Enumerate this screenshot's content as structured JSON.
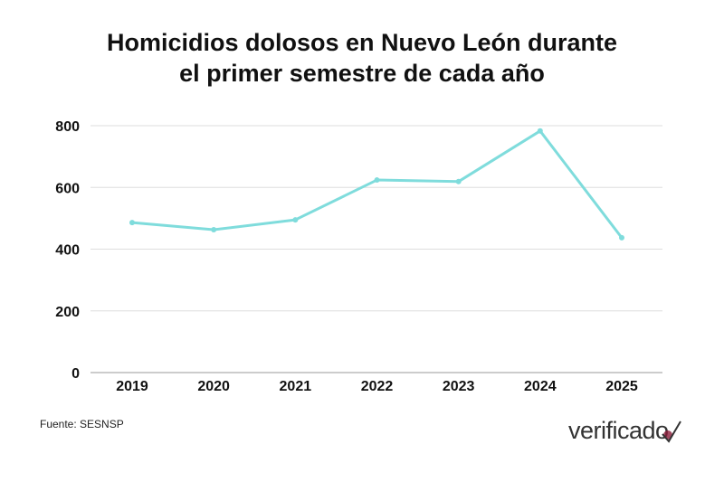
{
  "chart_data": {
    "type": "line",
    "title_lines": [
      "Homicidios dolosos en Nuevo León durante",
      "el primer semestre de cada año"
    ],
    "categories": [
      "2019",
      "2020",
      "2021",
      "2022",
      "2023",
      "2024",
      "2025"
    ],
    "values": [
      486,
      463,
      495,
      624,
      619,
      783,
      437
    ],
    "ylim": [
      0,
      800
    ],
    "yticks": [
      0,
      200,
      400,
      600,
      800
    ],
    "grid": true,
    "line_color": "#7fdcdc",
    "legend": "none"
  },
  "source": "Fuente: SESNSP",
  "logo": "verificado",
  "logo_accent_color": "#8b1c3a"
}
